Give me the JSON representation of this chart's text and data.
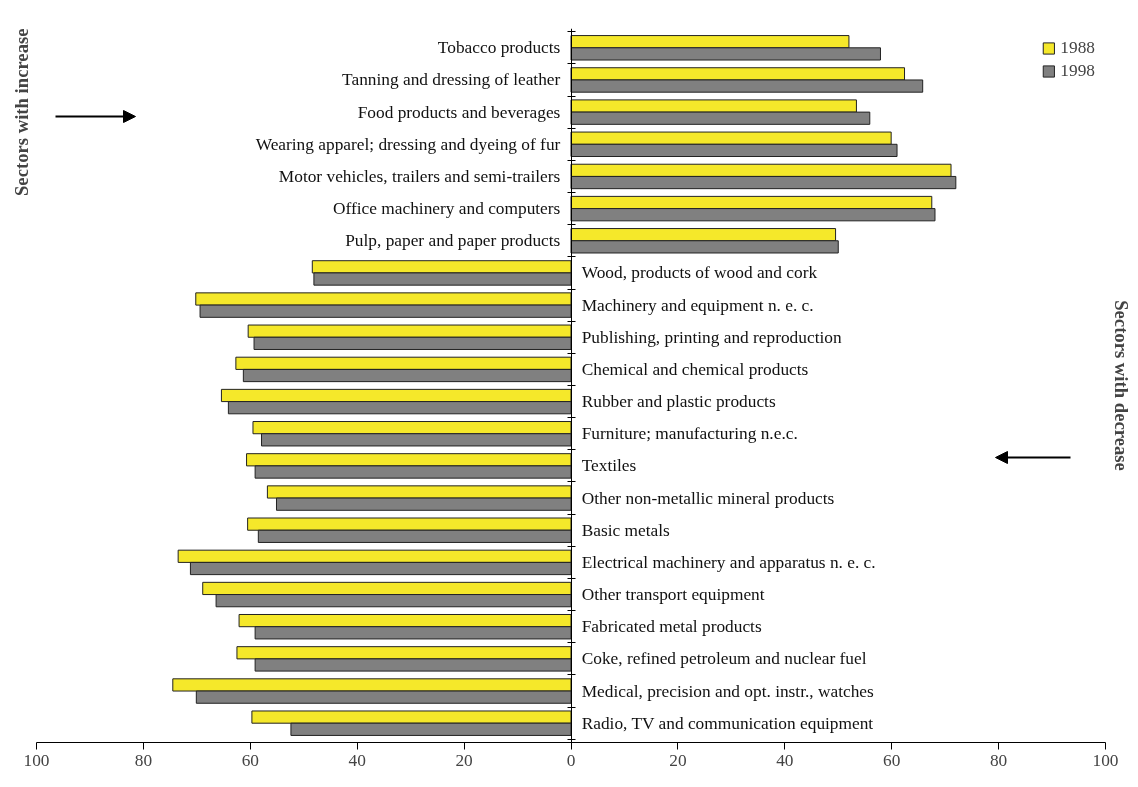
{
  "chart_data": {
    "type": "bar",
    "orientation": "horizontal",
    "categories": [
      "Tobacco products",
      "Tanning and dressing of leather",
      "Food products and beverages",
      "Wearing apparel; dressing and dyeing of fur",
      "Motor vehicles, trailers and semi-trailers",
      "Office machinery and computers",
      "Pulp, paper and paper products",
      "Wood, products of wood and cork",
      "Machinery and equipment n. e. c.",
      "Publishing, printing and reproduction",
      "Chemical and chemical products",
      "Rubber and plastic products",
      "Furniture; manufacturing n.e.c.",
      "Textiles",
      "Other non-metallic mineral products",
      "Basic metals",
      "Electrical machinery and apparatus n. e. c.",
      "Other transport equipment",
      "Fabricated metal products",
      "Coke, refined petroleum and nuclear fuel",
      "Medical, precision and opt. instr., watches",
      "Radio, TV and communication equipment"
    ],
    "series": [
      {
        "name": "1988",
        "color": "#f5e82a",
        "values": [
          52.0,
          62.4,
          53.4,
          59.9,
          71.1,
          67.5,
          49.5,
          -48.4,
          -70.2,
          -60.4,
          -62.7,
          -65.4,
          -59.5,
          -60.7,
          -56.8,
          -60.5,
          -73.5,
          -68.9,
          -62.1,
          -62.5,
          -74.5,
          -59.7
        ]
      },
      {
        "name": "1998",
        "color": "#808080",
        "values": [
          57.9,
          65.8,
          55.9,
          61.0,
          72.0,
          68.1,
          50.0,
          -48.1,
          -69.4,
          -59.3,
          -61.3,
          -64.1,
          -57.9,
          -59.1,
          -55.1,
          -58.5,
          -71.2,
          -66.4,
          -59.1,
          -59.1,
          -70.1,
          -52.4
        ]
      }
    ],
    "xlim": [
      -100,
      100
    ],
    "xticks": [
      {
        "value": -100,
        "label": "100"
      },
      {
        "value": -80,
        "label": "80"
      },
      {
        "value": -60,
        "label": "60"
      },
      {
        "value": -40,
        "label": "40"
      },
      {
        "value": -20,
        "label": "20"
      },
      0,
      20,
      40,
      60,
      80,
      100
    ],
    "legend": "top right",
    "annotations": [
      "Sectors with increase",
      "Sectors with decrease"
    ]
  }
}
